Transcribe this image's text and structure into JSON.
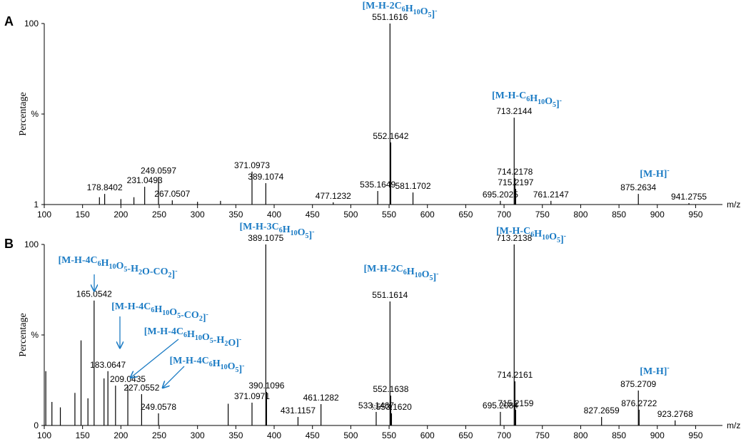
{
  "chart_data": [
    {
      "type": "stem",
      "panel": "A",
      "ylabel": "Percentage",
      "xlabel": "m/z",
      "color": "#000000",
      "x": [
        178.8402,
        231.0493,
        249.0597,
        267.0507,
        371.0973,
        389.1074,
        477.1232,
        535.1649,
        551.1616,
        552.1642,
        581.1702,
        695.2025,
        713.2144,
        714.2178,
        715.2197,
        761.2147,
        875.2634,
        941.2755,
        172,
        200,
        217,
        300,
        330
      ],
      "values": [
        6.8,
        10.7,
        16,
        3.3,
        19,
        12.7,
        2.2,
        8.4,
        100,
        35,
        7.6,
        3,
        48.5,
        15.4,
        9.6,
        3,
        6.8,
        1.8,
        5,
        4,
        5,
        2.5,
        3
      ],
      "labels": [
        "178.8402",
        "231.0493",
        "249.0597",
        "267.0507",
        "371.0973",
        "389.1074",
        "477.1232",
        "535.1649",
        "551.1616",
        "552.1642",
        "581.1702",
        "695.2025",
        "713.2144",
        "714.2178",
        "715.2197",
        "761.2147",
        "875.2634",
        "941.2755",
        null,
        null,
        null,
        null,
        null
      ],
      "xlim": [
        100,
        985
      ],
      "xticks": [
        100,
        150,
        200,
        250,
        300,
        350,
        400,
        450,
        500,
        550,
        600,
        650,
        700,
        750,
        800,
        850,
        900,
        950
      ],
      "ylim": [
        1,
        100
      ],
      "yticks": [
        1,
        {
          "value": 50.5,
          "label": "%"
        },
        100
      ],
      "annotations": [
        "[M-H-2C6H10O5]-",
        "[M-H-C6H10O5]-",
        "[M-H]-"
      ],
      "annotation_color": "#1b7bc4"
    },
    {
      "type": "stem",
      "panel": "B",
      "ylabel": "Percentage",
      "xlabel": "m/z",
      "color": "#000000",
      "x": [
        165.0542,
        183.0647,
        209.0435,
        227.0552,
        249.0578,
        371.0971,
        389.1075,
        390.1096,
        431.1157,
        461.1282,
        533.1467,
        551.1614,
        552.1638,
        553.162,
        695.2084,
        713.2138,
        714.2161,
        715.2159,
        827.2659,
        875.2709,
        876.2722,
        923.2768,
        102,
        110,
        121,
        140,
        148,
        157,
        178,
        193,
        340
      ],
      "values": [
        69,
        30,
        22,
        17.3,
        6.7,
        12.6,
        100,
        18.5,
        4.7,
        11.8,
        7.5,
        68.5,
        16.5,
        6.7,
        7.5,
        100,
        24.4,
        8.7,
        4.7,
        19.3,
        8.7,
        2.8,
        30,
        13,
        10,
        18,
        47,
        15,
        26,
        22,
        12
      ],
      "labels": [
        "165.0542",
        "183.0647",
        "209.0435",
        "227.0552",
        "249.0578",
        "371.0971",
        "389.1075",
        "390.1096",
        "431.1157",
        "461.1282",
        "533.1467",
        "551.1614",
        "552.1638",
        "!:553.1620",
        "695.2084",
        "713.2138",
        "714.2161",
        "715.2159",
        "827.2659",
        "875.2709",
        "876.2722",
        "923.2768",
        null,
        null,
        null,
        null,
        null,
        null,
        null,
        null,
        null
      ],
      "xlim": [
        100,
        985
      ],
      "xticks": [
        100,
        150,
        200,
        250,
        300,
        350,
        400,
        450,
        500,
        550,
        600,
        650,
        700,
        750,
        800,
        850,
        900,
        950
      ],
      "ylim": [
        0,
        100
      ],
      "yticks": [
        0,
        {
          "value": 50,
          "label": "%"
        },
        100
      ],
      "annotations": [
        "[M-H-3C6H10O5]-",
        "[M-H-C6H10O5]-",
        "[M-H-4C6H10O5-H2O-CO2]-",
        "[M-H-2C6H10O5]-",
        "[M-H-4C6H10O5-CO2]-",
        "[M-H-4C6H10O5-H2O]-",
        "[M-H-4C6H10O5]-",
        "[M-H]-"
      ],
      "annotation_color": "#1b7bc4"
    }
  ]
}
